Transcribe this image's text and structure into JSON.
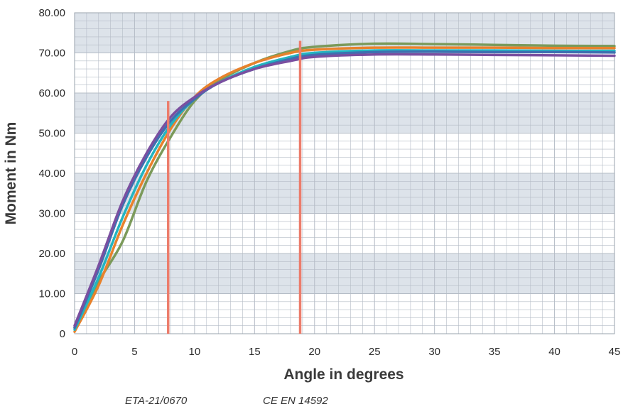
{
  "chart_data": {
    "type": "line",
    "xlabel": "Angle in degrees",
    "ylabel": "Moment in Nm",
    "xlim": [
      0,
      45
    ],
    "ylim": [
      0,
      80
    ],
    "x_ticks": [
      0,
      5,
      10,
      15,
      20,
      25,
      30,
      35,
      40,
      45
    ],
    "y_ticks": [
      "0",
      "10.00",
      "20.00",
      "30.00",
      "40.00",
      "50.00",
      "60.00",
      "70.00",
      "80.00"
    ],
    "grid": true,
    "band_color": "#dde3ea",
    "gridline_color": "#b5bcc6",
    "series": [
      {
        "color": "#7b9a5a",
        "x": [
          0,
          2,
          4,
          6,
          8,
          10,
          12,
          15,
          18,
          20,
          25,
          30,
          35,
          40,
          45
        ],
        "y": [
          1.5,
          13,
          23,
          38,
          49,
          58,
          63,
          67.5,
          70.5,
          71.5,
          72.3,
          72.2,
          72,
          71.8,
          71.7
        ]
      },
      {
        "color": "#e8822c",
        "x": [
          0,
          2,
          4,
          6,
          8,
          10,
          12,
          15,
          18,
          20,
          25,
          30,
          35,
          40,
          45
        ],
        "y": [
          0.5,
          12,
          27,
          40,
          51,
          59,
          63.5,
          67.5,
          70,
          70.8,
          71.3,
          71.3,
          71.3,
          71.2,
          71.2
        ]
      },
      {
        "color": "#23b5c0",
        "x": [
          0,
          2,
          4,
          6,
          8,
          10,
          12,
          15,
          18,
          20,
          25,
          30,
          35,
          40,
          45
        ],
        "y": [
          1,
          14,
          29,
          42,
          52,
          58.5,
          62.5,
          66.5,
          69,
          70,
          70.6,
          70.6,
          70.6,
          70.5,
          70.5
        ]
      },
      {
        "color": "#3f6fb0",
        "x": [
          0,
          2,
          4,
          6,
          8,
          10,
          12,
          15,
          18,
          20,
          25,
          30,
          35,
          40,
          45
        ],
        "y": [
          1.5,
          16,
          32,
          44,
          53,
          58.5,
          62.5,
          66,
          68.5,
          69.5,
          70.2,
          70.3,
          70.2,
          70.2,
          70.1
        ]
      },
      {
        "color": "#7a4fa0",
        "x": [
          0,
          2,
          4,
          6,
          8,
          10,
          12,
          15,
          18,
          20,
          25,
          30,
          35,
          40,
          45
        ],
        "y": [
          2,
          17,
          33,
          45,
          54,
          59,
          62.5,
          66,
          68,
          69,
          69.6,
          69.6,
          69.5,
          69.4,
          69.3
        ]
      }
    ],
    "markers": [
      {
        "x": 7.8,
        "y_top": 58,
        "color": "#ec7d6c"
      },
      {
        "x": 18.8,
        "y_top": 73,
        "color": "#ec7d6c"
      }
    ]
  },
  "footnotes": {
    "eta": "ETA-21/0670",
    "norm": "CE EN 14592"
  }
}
